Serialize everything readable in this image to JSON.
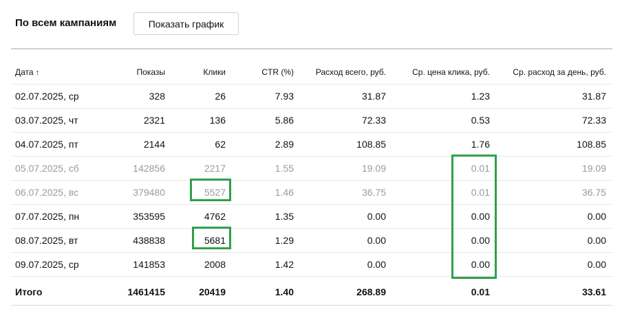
{
  "header": {
    "title": "По всем кампаниям",
    "chart_button": "Показать график"
  },
  "table": {
    "columns": [
      "Дата",
      "Показы",
      "Клики",
      "CTR (%)",
      "Расход всего, руб.",
      "Ср. цена клика, руб.",
      "Ср. расход за день, руб."
    ],
    "sort_indicator": "↑",
    "rows": [
      {
        "date": "02.07.2025, ср",
        "impressions": "328",
        "clicks": "26",
        "ctr": "7.93",
        "spend": "31.87",
        "cpc": "1.23",
        "daily": "31.87",
        "dim": false
      },
      {
        "date": "03.07.2025, чт",
        "impressions": "2321",
        "clicks": "136",
        "ctr": "5.86",
        "spend": "72.33",
        "cpc": "0.53",
        "daily": "72.33",
        "dim": false
      },
      {
        "date": "04.07.2025, пт",
        "impressions": "2144",
        "clicks": "62",
        "ctr": "2.89",
        "spend": "108.85",
        "cpc": "1.76",
        "daily": "108.85",
        "dim": false
      },
      {
        "date": "05.07.2025, сб",
        "impressions": "142856",
        "clicks": "2217",
        "ctr": "1.55",
        "spend": "19.09",
        "cpc": "0.01",
        "daily": "19.09",
        "dim": true
      },
      {
        "date": "06.07.2025, вс",
        "impressions": "379480",
        "clicks": "5527",
        "ctr": "1.46",
        "spend": "36.75",
        "cpc": "0.01",
        "daily": "36.75",
        "dim": true
      },
      {
        "date": "07.07.2025, пн",
        "impressions": "353595",
        "clicks": "4762",
        "ctr": "1.35",
        "spend": "0.00",
        "cpc": "0.00",
        "daily": "0.00",
        "dim": false
      },
      {
        "date": "08.07.2025, вт",
        "impressions": "438838",
        "clicks": "5681",
        "ctr": "1.29",
        "spend": "0.00",
        "cpc": "0.00",
        "daily": "0.00",
        "dim": false
      },
      {
        "date": "09.07.2025, ср",
        "impressions": "141853",
        "clicks": "2008",
        "ctr": "1.42",
        "spend": "0.00",
        "cpc": "0.00",
        "daily": "0.00",
        "dim": false
      }
    ],
    "total": {
      "date": "Итого",
      "impressions": "1461415",
      "clicks": "20419",
      "ctr": "1.40",
      "spend": "268.89",
      "cpc": "0.01",
      "daily": "33.61"
    }
  },
  "colors": {
    "highlight": "#2fa04a",
    "dim_text": "#9a9a9a"
  }
}
